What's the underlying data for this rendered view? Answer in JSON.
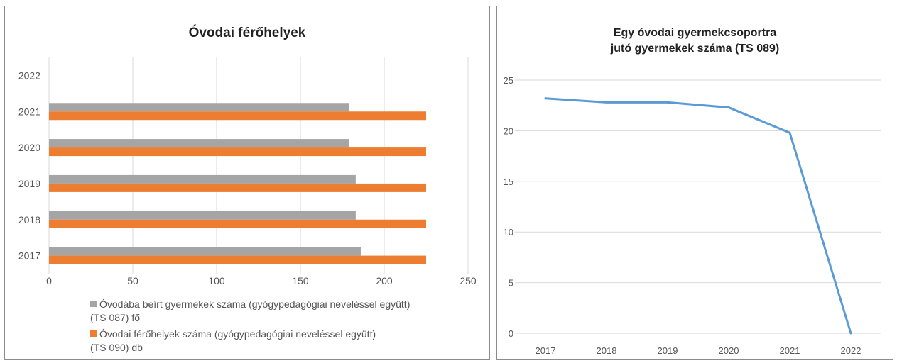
{
  "chart_data": [
    {
      "type": "bar",
      "orientation": "horizontal",
      "title": "Óvodai férőhelyek",
      "categories": [
        "2017",
        "2018",
        "2019",
        "2020",
        "2021",
        "2022"
      ],
      "series": [
        {
          "name": "Óvodába beírt gyermekek száma (gyógypedagógiai neveléssel együtt) (TS 087) fő",
          "legend_lines": [
            "Óvodába beírt gyermekek száma (gyógypedagógiai neveléssel együtt)",
            "(TS 087) fő"
          ],
          "color": "#a5a5a5",
          "values": [
            186,
            183,
            183,
            179,
            179,
            null
          ]
        },
        {
          "name": "Óvodai férőhelyek száma (gyógypedagógiai neveléssel együtt) (TS 090) db",
          "legend_lines": [
            "Óvodai férőhelyek száma (gyógypedagógiai neveléssel együtt)",
            "(TS 090) db"
          ],
          "color": "#ed7d31",
          "values": [
            225,
            225,
            225,
            225,
            225,
            null
          ]
        }
      ],
      "xlim": [
        0,
        250
      ],
      "xticks": [
        "0",
        "50",
        "100",
        "150",
        "200",
        "250"
      ],
      "grid": true,
      "legend_position": "bottom"
    },
    {
      "type": "line",
      "title_lines": [
        "Egy óvodai gyermekcsoportra",
        "jutó gyermekek száma (TS 089)"
      ],
      "x": [
        "2017",
        "2018",
        "2019",
        "2020",
        "2021",
        "2022"
      ],
      "series": [
        {
          "color": "#5b9bd5",
          "values": [
            23.2,
            22.8,
            22.8,
            22.3,
            19.8,
            0
          ]
        }
      ],
      "ylim": [
        0,
        25
      ],
      "yticks": [
        "0",
        "5",
        "10",
        "15",
        "20",
        "25"
      ],
      "grid": true,
      "legend_position": "none"
    }
  ]
}
